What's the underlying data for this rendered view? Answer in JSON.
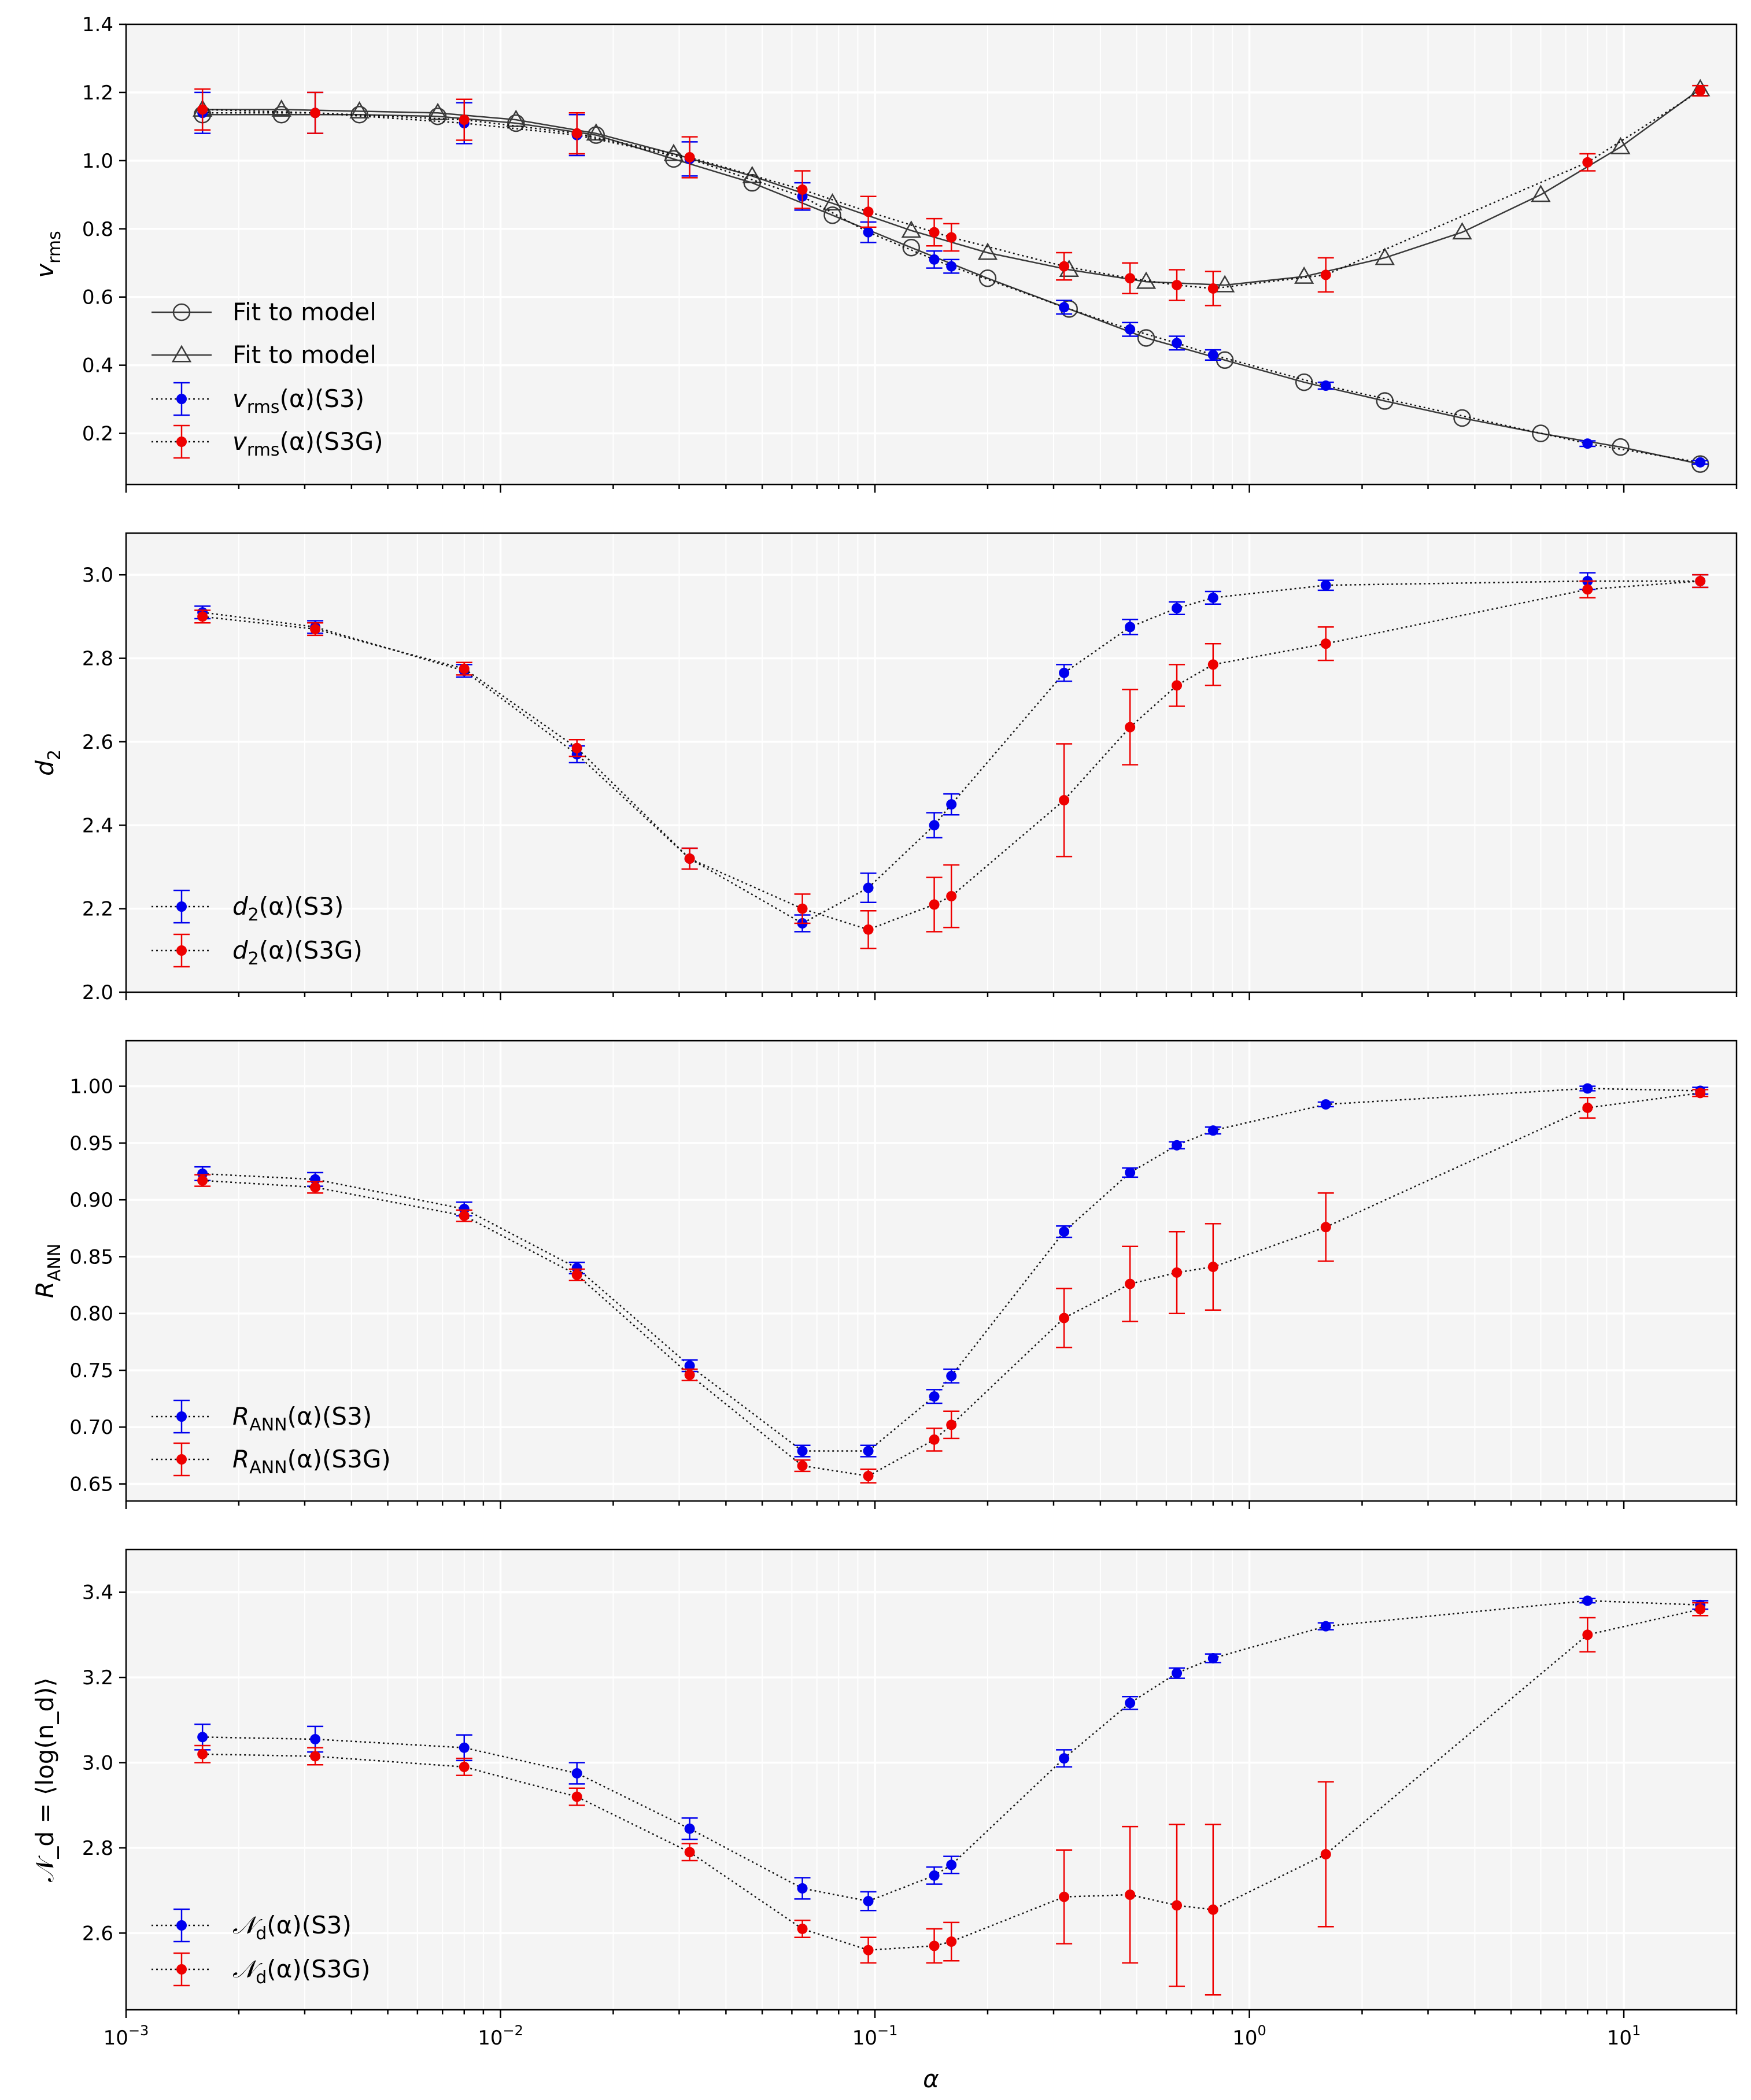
{
  "figure": {
    "xlabel": "α",
    "x_tick_labels": [
      {
        "value": 0.001,
        "base": "10",
        "exp": "−3"
      },
      {
        "value": 0.01,
        "base": "10",
        "exp": "−2"
      },
      {
        "value": 0.1,
        "base": "10",
        "exp": "−1"
      },
      {
        "value": 1,
        "base": "10",
        "exp": "0"
      },
      {
        "value": 10,
        "base": "10",
        "exp": "1"
      }
    ]
  },
  "chart_data": [
    {
      "type": "line",
      "id": "vrms",
      "ylabel": "v_rms",
      "ylabel_main": "v",
      "ylabel_sub": "rms",
      "xscale": "log",
      "xlim": [
        0.001,
        20
      ],
      "ylim": [
        0.05,
        1.4
      ],
      "yticks": [
        0.2,
        0.4,
        0.6,
        0.8,
        1.0,
        1.2,
        1.4
      ],
      "ytick_labels": [
        "0.2",
        "0.4",
        "0.6",
        "0.8",
        "1.0",
        "1.2",
        "1.4"
      ],
      "grid": true,
      "legend_position": "lower-left",
      "series": [
        {
          "name": "Fit to model",
          "label": "Fit to model",
          "kind": "model",
          "marker": "circle",
          "color": "#3a3a3a",
          "x": [
            0.0016,
            0.0026,
            0.0042,
            0.0068,
            0.011,
            0.018,
            0.029,
            0.047,
            0.077,
            0.125,
            0.2,
            0.33,
            0.53,
            0.86,
            1.4,
            2.3,
            3.7,
            6.0,
            9.8,
            16
          ],
          "y": [
            1.135,
            1.135,
            1.135,
            1.13,
            1.11,
            1.075,
            1.005,
            0.935,
            0.84,
            0.745,
            0.655,
            0.565,
            0.48,
            0.415,
            0.35,
            0.295,
            0.245,
            0.2,
            0.16,
            0.11
          ]
        },
        {
          "name": "Fit to model",
          "label": "Fit to model",
          "kind": "model",
          "marker": "triangle",
          "color": "#3a3a3a",
          "x": [
            0.0016,
            0.0026,
            0.0042,
            0.0068,
            0.011,
            0.018,
            0.029,
            0.047,
            0.077,
            0.125,
            0.2,
            0.33,
            0.53,
            0.86,
            1.4,
            2.3,
            3.7,
            6.0,
            9.8,
            16
          ],
          "y": [
            1.15,
            1.15,
            1.145,
            1.14,
            1.12,
            1.08,
            1.02,
            0.955,
            0.875,
            0.795,
            0.73,
            0.68,
            0.645,
            0.635,
            0.66,
            0.715,
            0.79,
            0.9,
            1.04,
            1.21
          ]
        },
        {
          "name": "v_rms(α)(S3)",
          "label_main": "v",
          "label_sub": "rms",
          "label_rest": "(α)(S3)",
          "kind": "data",
          "color": "#0000ee",
          "x": [
            0.0016,
            0.0032,
            0.008,
            0.016,
            0.032,
            0.064,
            0.096,
            0.144,
            0.16,
            0.32,
            0.48,
            0.64,
            0.8,
            1.6,
            8,
            16
          ],
          "y": [
            1.14,
            1.14,
            1.11,
            1.075,
            1.005,
            0.895,
            0.79,
            0.71,
            0.69,
            0.57,
            0.505,
            0.465,
            0.43,
            0.34,
            0.17,
            0.115
          ],
          "err": [
            0.06,
            0.06,
            0.06,
            0.06,
            0.05,
            0.04,
            0.03,
            0.025,
            0.02,
            0.02,
            0.02,
            0.02,
            0.015,
            0.01,
            0.008,
            0.005
          ]
        },
        {
          "name": "v_rms(α)(S3G)",
          "label_main": "v",
          "label_sub": "rms",
          "label_rest": "(α)(S3G)",
          "kind": "data",
          "color": "#ee0000",
          "x": [
            0.0016,
            0.0032,
            0.008,
            0.016,
            0.032,
            0.064,
            0.096,
            0.144,
            0.16,
            0.32,
            0.48,
            0.64,
            0.8,
            1.6,
            8,
            16
          ],
          "y": [
            1.15,
            1.14,
            1.12,
            1.08,
            1.01,
            0.915,
            0.85,
            0.79,
            0.775,
            0.69,
            0.655,
            0.635,
            0.625,
            0.665,
            0.995,
            1.205
          ],
          "err": [
            0.06,
            0.06,
            0.06,
            0.06,
            0.06,
            0.055,
            0.045,
            0.04,
            0.04,
            0.04,
            0.045,
            0.045,
            0.05,
            0.05,
            0.025,
            0.015
          ]
        }
      ]
    },
    {
      "type": "line",
      "id": "d2",
      "ylabel": "d_2",
      "ylabel_main": "d",
      "ylabel_sub": "2",
      "xscale": "log",
      "xlim": [
        0.001,
        20
      ],
      "ylim": [
        2.0,
        3.1
      ],
      "yticks": [
        2.0,
        2.2,
        2.4,
        2.6,
        2.8,
        3.0
      ],
      "ytick_labels": [
        "2.0",
        "2.2",
        "2.4",
        "2.6",
        "2.8",
        "3.0"
      ],
      "grid": true,
      "legend_position": "lower-left",
      "series": [
        {
          "name": "d_2(α)(S3)",
          "label_main": "d",
          "label_sub": "2",
          "label_rest": "(α)(S3)",
          "kind": "data",
          "color": "#0000ee",
          "x": [
            0.0016,
            0.0032,
            0.008,
            0.016,
            0.032,
            0.064,
            0.096,
            0.144,
            0.16,
            0.32,
            0.48,
            0.64,
            0.8,
            1.6,
            8,
            16
          ],
          "y": [
            2.91,
            2.875,
            2.77,
            2.57,
            2.32,
            2.165,
            2.25,
            2.4,
            2.45,
            2.765,
            2.875,
            2.92,
            2.945,
            2.975,
            2.985,
            2.985
          ],
          "err": [
            0.015,
            0.015,
            0.015,
            0.02,
            0.025,
            0.02,
            0.035,
            0.03,
            0.025,
            0.02,
            0.018,
            0.015,
            0.015,
            0.012,
            0.02,
            0.015
          ]
        },
        {
          "name": "d_2(α)(S3G)",
          "label_main": "d",
          "label_sub": "2",
          "label_rest": "(α)(S3G)",
          "kind": "data",
          "color": "#ee0000",
          "x": [
            0.0016,
            0.0032,
            0.008,
            0.016,
            0.032,
            0.064,
            0.096,
            0.144,
            0.16,
            0.32,
            0.48,
            0.64,
            0.8,
            1.6,
            8,
            16
          ],
          "y": [
            2.9,
            2.87,
            2.775,
            2.585,
            2.32,
            2.2,
            2.15,
            2.21,
            2.23,
            2.46,
            2.635,
            2.735,
            2.785,
            2.835,
            2.965,
            2.985
          ],
          "err": [
            0.015,
            0.015,
            0.015,
            0.02,
            0.025,
            0.035,
            0.045,
            0.065,
            0.075,
            0.135,
            0.09,
            0.05,
            0.05,
            0.04,
            0.02,
            0.015
          ]
        }
      ]
    },
    {
      "type": "line",
      "id": "rann",
      "ylabel": "R_ANN",
      "ylabel_main": "R",
      "ylabel_sub": "ANN",
      "xscale": "log",
      "xlim": [
        0.001,
        20
      ],
      "ylim": [
        0.635,
        1.04
      ],
      "yticks": [
        0.65,
        0.7,
        0.75,
        0.8,
        0.85,
        0.9,
        0.95,
        1.0
      ],
      "ytick_labels": [
        "0.65",
        "0.70",
        "0.75",
        "0.80",
        "0.85",
        "0.90",
        "0.95",
        "1.00"
      ],
      "grid": true,
      "legend_position": "lower-left",
      "series": [
        {
          "name": "R_ANN(α)(S3)",
          "label_main": "R",
          "label_sub": "ANN",
          "label_rest": "(α)(S3)",
          "kind": "data",
          "color": "#0000ee",
          "x": [
            0.0016,
            0.0032,
            0.008,
            0.016,
            0.032,
            0.064,
            0.096,
            0.144,
            0.16,
            0.32,
            0.48,
            0.64,
            0.8,
            1.6,
            8,
            16
          ],
          "y": [
            0.923,
            0.918,
            0.892,
            0.84,
            0.754,
            0.679,
            0.679,
            0.727,
            0.745,
            0.872,
            0.924,
            0.948,
            0.961,
            0.984,
            0.998,
            0.996
          ],
          "err": [
            0.006,
            0.006,
            0.006,
            0.005,
            0.005,
            0.005,
            0.005,
            0.006,
            0.006,
            0.005,
            0.004,
            0.003,
            0.003,
            0.002,
            0.002,
            0.003
          ]
        },
        {
          "name": "R_ANN(α)(S3G)",
          "label_main": "R",
          "label_sub": "ANN",
          "label_rest": "(α)(S3G)",
          "kind": "data",
          "color": "#ee0000",
          "x": [
            0.0016,
            0.0032,
            0.008,
            0.016,
            0.032,
            0.064,
            0.096,
            0.144,
            0.16,
            0.32,
            0.48,
            0.64,
            0.8,
            1.6,
            8,
            16
          ],
          "y": [
            0.917,
            0.911,
            0.886,
            0.834,
            0.746,
            0.666,
            0.657,
            0.689,
            0.702,
            0.796,
            0.826,
            0.836,
            0.841,
            0.876,
            0.981,
            0.994
          ],
          "err": [
            0.005,
            0.005,
            0.005,
            0.005,
            0.005,
            0.005,
            0.006,
            0.01,
            0.012,
            0.026,
            0.033,
            0.036,
            0.038,
            0.03,
            0.009,
            0.003
          ]
        }
      ]
    },
    {
      "type": "line",
      "id": "nd",
      "ylabel": "𝒩_d = ⟨log(n_d)⟩",
      "xscale": "log",
      "xlim": [
        0.001,
        20
      ],
      "ylim": [
        2.42,
        3.5
      ],
      "yticks": [
        2.6,
        2.8,
        3.0,
        3.2,
        3.4
      ],
      "ytick_labels": [
        "2.6",
        "2.8",
        "3.0",
        "3.2",
        "3.4"
      ],
      "grid": true,
      "legend_position": "lower-left",
      "series": [
        {
          "name": "𝒩_d(α)(S3)",
          "label_main": "𝒩",
          "label_sub": "d",
          "label_rest": "(α)(S3)",
          "kind": "data",
          "color": "#0000ee",
          "x": [
            0.0016,
            0.0032,
            0.008,
            0.016,
            0.032,
            0.064,
            0.096,
            0.144,
            0.16,
            0.32,
            0.48,
            0.64,
            0.8,
            1.6,
            8,
            16
          ],
          "y": [
            3.06,
            3.055,
            3.035,
            2.975,
            2.845,
            2.705,
            2.675,
            2.735,
            2.76,
            3.01,
            3.14,
            3.21,
            3.245,
            3.32,
            3.38,
            3.37
          ],
          "err": [
            0.03,
            0.03,
            0.03,
            0.025,
            0.025,
            0.025,
            0.022,
            0.02,
            0.02,
            0.02,
            0.015,
            0.012,
            0.01,
            0.008,
            0.005,
            0.01
          ]
        },
        {
          "name": "𝒩_d(α)(S3G)",
          "label_main": "𝒩",
          "label_sub": "d",
          "label_rest": "(α)(S3G)",
          "kind": "data",
          "color": "#ee0000",
          "x": [
            0.0016,
            0.0032,
            0.008,
            0.016,
            0.032,
            0.064,
            0.096,
            0.144,
            0.16,
            0.32,
            0.48,
            0.64,
            0.8,
            1.6,
            8,
            16
          ],
          "y": [
            3.02,
            3.015,
            2.99,
            2.92,
            2.79,
            2.61,
            2.56,
            2.57,
            2.58,
            2.685,
            2.69,
            2.665,
            2.655,
            2.785,
            3.3,
            3.36
          ],
          "err": [
            0.02,
            0.02,
            0.02,
            0.02,
            0.02,
            0.02,
            0.03,
            0.04,
            0.045,
            0.11,
            0.16,
            0.19,
            0.2,
            0.17,
            0.04,
            0.015
          ]
        }
      ]
    }
  ]
}
